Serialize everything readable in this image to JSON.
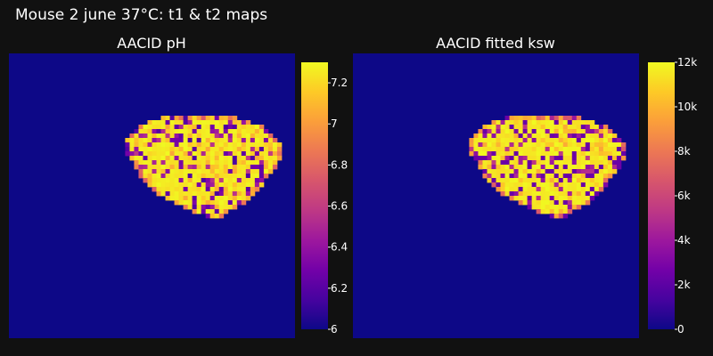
{
  "figure": {
    "title": "Mouse 2 june 37°C: t1 & t2 maps"
  },
  "colors": {
    "background": "#111111",
    "map_background": "#0d0887",
    "colorscale": "plasma"
  },
  "chart_data": [
    {
      "type": "heatmap",
      "title": "AACID pH",
      "colorscale": "plasma",
      "zrange": [
        6.0,
        7.3
      ],
      "background_value": 6.0,
      "colorbar_ticks": [
        {
          "value": 6.0,
          "label": "6"
        },
        {
          "value": 6.2,
          "label": "6.2"
        },
        {
          "value": 6.4,
          "label": "6.4"
        },
        {
          "value": 6.6,
          "label": "6.6"
        },
        {
          "value": 6.8,
          "label": "6.8"
        },
        {
          "value": 7.0,
          "label": "7"
        },
        {
          "value": 7.2,
          "label": "7.2"
        }
      ]
    },
    {
      "type": "heatmap",
      "title": "AACID fitted ksw",
      "colorscale": "plasma",
      "zrange": [
        0,
        12000
      ],
      "background_value": 0,
      "colorbar_ticks": [
        {
          "value": 0,
          "label": "0"
        },
        {
          "value": 2000,
          "label": "2k"
        },
        {
          "value": 4000,
          "label": "4k"
        },
        {
          "value": 6000,
          "label": "6k"
        },
        {
          "value": 8000,
          "label": "8k"
        },
        {
          "value": 10000,
          "label": "10k"
        },
        {
          "value": 12000,
          "label": "12k"
        }
      ]
    }
  ]
}
